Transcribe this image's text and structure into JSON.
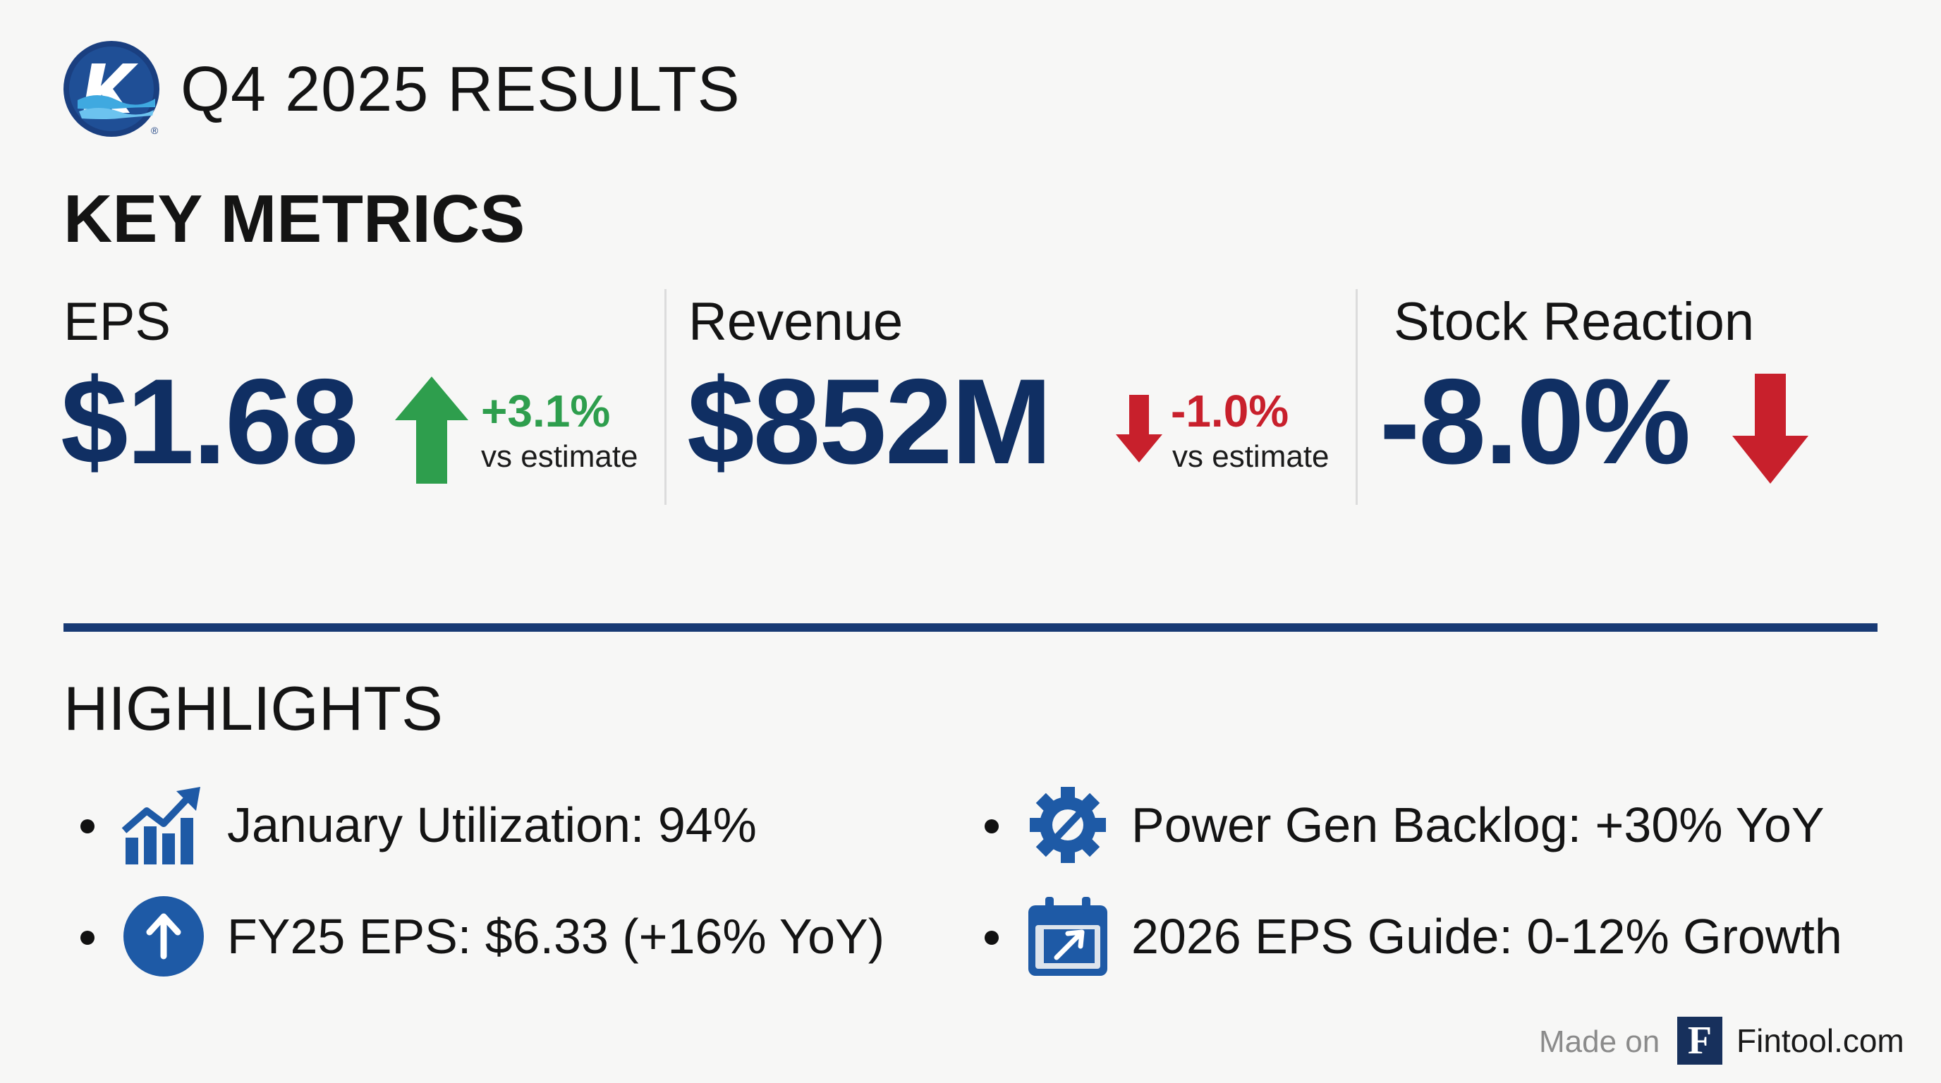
{
  "header": {
    "title": "Q4 2025 RESULTS",
    "logo_name": "company-logo",
    "logo_letter": "K"
  },
  "key_metrics": {
    "title": "KEY METRICS",
    "eps": {
      "label": "EPS",
      "value": "$1.68",
      "delta": "+3.1%",
      "delta_sub": "vs estimate",
      "direction": "up"
    },
    "revenue": {
      "label": "Revenue",
      "value": "$852M",
      "delta": "-1.0%",
      "delta_sub": "vs estimate",
      "direction": "down"
    },
    "stock": {
      "label": "Stock Reaction",
      "value": "-8.0%",
      "direction": "down"
    }
  },
  "highlights": {
    "title": "HIGHLIGHTS",
    "items": [
      {
        "icon": "growth-chart-icon",
        "text": "January Utilization: 94%"
      },
      {
        "icon": "gear-arrow-icon",
        "text": "Power Gen Backlog: +30% YoY"
      },
      {
        "icon": "up-arrow-circle-icon",
        "text": "FY25 EPS: $6.33 (+16% YoY)"
      },
      {
        "icon": "calendar-arrow-icon",
        "text": "2026 EPS Guide: 0-12% Growth"
      }
    ]
  },
  "footer": {
    "made_on": "Made on",
    "brand_letter": "F",
    "brand": "Fintool.com"
  },
  "colors": {
    "navy": "#102f63",
    "rule": "#183a74",
    "up_green": "#2e9e4d",
    "down_red": "#c8202c",
    "icon_blue": "#1e5aa6"
  }
}
